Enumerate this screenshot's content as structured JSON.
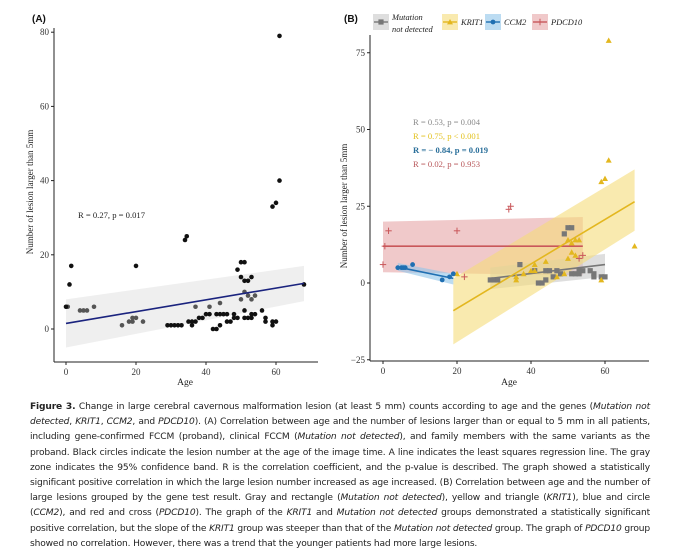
{
  "chart_data": [
    {
      "panel": "(A)",
      "type": "scatter",
      "title": "",
      "xlabel": "Age",
      "ylabel": "Number of lesion larger than 5mm",
      "xlim": [
        -3,
        71
      ],
      "ylim": [
        -9,
        82
      ],
      "xticks": [
        0,
        20,
        40,
        60
      ],
      "yticks": [
        0,
        20,
        40,
        60,
        80
      ],
      "grid": false,
      "annotation": "R = 0.27, p = 0.017",
      "colors": {
        "points_black": "#111111",
        "points_gray": "#555555",
        "line": "#1a237e",
        "band": "#e8e8e8"
      },
      "regression": {
        "x": [
          0,
          68
        ],
        "y": [
          1.5,
          12.3
        ],
        "band_lower": [
          -5,
          7.5
        ],
        "band_upper": [
          8,
          17
        ]
      },
      "points_black": [
        [
          0,
          6
        ],
        [
          1,
          12
        ],
        [
          1.5,
          17
        ],
        [
          20,
          17
        ],
        [
          29,
          1
        ],
        [
          30,
          1
        ],
        [
          31,
          1
        ],
        [
          32,
          1
        ],
        [
          33,
          1
        ],
        [
          34,
          24
        ],
        [
          34.5,
          25
        ],
        [
          35,
          2
        ],
        [
          36,
          1
        ],
        [
          36,
          2
        ],
        [
          37,
          2
        ],
        [
          38,
          3
        ],
        [
          39,
          3
        ],
        [
          40,
          4
        ],
        [
          41,
          4
        ],
        [
          42,
          0
        ],
        [
          43,
          0
        ],
        [
          44,
          1
        ],
        [
          43,
          4
        ],
        [
          44,
          4
        ],
        [
          45,
          4
        ],
        [
          46,
          4
        ],
        [
          46,
          2
        ],
        [
          47,
          2
        ],
        [
          48,
          4
        ],
        [
          48,
          3
        ],
        [
          49,
          16
        ],
        [
          49,
          3
        ],
        [
          50,
          14
        ],
        [
          50,
          18
        ],
        [
          51,
          18
        ],
        [
          51,
          13
        ],
        [
          51,
          5
        ],
        [
          51,
          3
        ],
        [
          52,
          13
        ],
        [
          52,
          3
        ],
        [
          53,
          14
        ],
        [
          53,
          3
        ],
        [
          53,
          4
        ],
        [
          54,
          4
        ],
        [
          56,
          5
        ],
        [
          57,
          3
        ],
        [
          57,
          2
        ],
        [
          59,
          1
        ],
        [
          59,
          2
        ],
        [
          59,
          33
        ],
        [
          60,
          34
        ],
        [
          60,
          2
        ],
        [
          61,
          40
        ],
        [
          61,
          79
        ],
        [
          68,
          12
        ]
      ],
      "points_gray": [
        [
          0.5,
          6
        ],
        [
          4,
          5
        ],
        [
          5,
          5
        ],
        [
          6,
          5
        ],
        [
          8,
          6
        ],
        [
          16,
          1
        ],
        [
          18,
          2
        ],
        [
          19,
          2
        ],
        [
          19,
          3
        ],
        [
          20,
          3
        ],
        [
          22,
          2
        ],
        [
          37,
          6
        ],
        [
          41,
          6
        ],
        [
          44,
          7
        ],
        [
          50,
          8
        ],
        [
          51,
          10
        ],
        [
          52,
          9
        ],
        [
          53,
          8
        ],
        [
          54,
          9
        ]
      ]
    },
    {
      "panel": "(B)",
      "type": "scatter",
      "title": "",
      "xlabel": "Age",
      "ylabel": "Number of lesion larger than 5mm",
      "xlim": [
        -4,
        71
      ],
      "ylim": [
        -25,
        82
      ],
      "xticks": [
        0,
        20,
        40,
        60
      ],
      "yticks": [
        -25,
        0,
        25,
        50,
        75
      ],
      "grid": false,
      "legend": {
        "placement": "top",
        "entries": [
          "Mutation not detected",
          "KRIT1",
          "CCM2",
          "PDCD10"
        ]
      },
      "annotations": [
        "R = 0.53, p = 0.004",
        "R = 0.75, p < 0.001",
        "R = − 0.84, p = 0.019",
        "R = 0.02, p = 0.953"
      ],
      "series": [
        {
          "name": "Mutation not detected",
          "marker": "square",
          "color": "#777777",
          "band_color": "#c8c8c8",
          "regression": {
            "x": [
              29,
              60
            ],
            "y": [
              1.5,
              6
            ],
            "band_lower": [
              -2,
              2
            ],
            "band_upper": [
              5,
              9.5
            ]
          },
          "points": [
            [
              29,
              1
            ],
            [
              30,
              1
            ],
            [
              31,
              1
            ],
            [
              37,
              6
            ],
            [
              42,
              0
            ],
            [
              43,
              0
            ],
            [
              44,
              1
            ],
            [
              46,
              2
            ],
            [
              48,
              3
            ],
            [
              49,
              16
            ],
            [
              50,
              18
            ],
            [
              51,
              18
            ],
            [
              51,
              3
            ],
            [
              52,
              3
            ],
            [
              53,
              4
            ],
            [
              53,
              3
            ],
            [
              54,
              4
            ],
            [
              56,
              4
            ],
            [
              57,
              3
            ],
            [
              57,
              2
            ],
            [
              59,
              2
            ],
            [
              60,
              2
            ],
            [
              41,
              4
            ],
            [
              44,
              4
            ],
            [
              45,
              4
            ],
            [
              47,
              4
            ]
          ]
        },
        {
          "name": "KRIT1",
          "marker": "triangle",
          "color": "#e3b71f",
          "band_color": "#f5dc7a",
          "regression": {
            "x": [
              19,
              68
            ],
            "y": [
              -9,
              26.5
            ],
            "band_lower": [
              -20,
              17
            ],
            "band_upper": [
              1.5,
              37
            ]
          },
          "points": [
            [
              20,
              3
            ],
            [
              36,
              1
            ],
            [
              36,
              2
            ],
            [
              38,
              3
            ],
            [
              40,
              4
            ],
            [
              41,
              6
            ],
            [
              41,
              4
            ],
            [
              44,
              7
            ],
            [
              47,
              2
            ],
            [
              50,
              8
            ],
            [
              50,
              14
            ],
            [
              51,
              10
            ],
            [
              51,
              13
            ],
            [
              52,
              14
            ],
            [
              52,
              9
            ],
            [
              53,
              14
            ],
            [
              49,
              3
            ],
            [
              59,
              1
            ],
            [
              59,
              33
            ],
            [
              60,
              34
            ],
            [
              61,
              40
            ],
            [
              61,
              79
            ],
            [
              68,
              12
            ]
          ]
        },
        {
          "name": "CCM2",
          "marker": "circle",
          "color": "#1f6fb2",
          "band_color": "#8fc4ea",
          "regression": {
            "x": [
              4,
              19
            ],
            "y": [
              5.2,
              1.5
            ],
            "band_lower": [
              4,
              -0.5
            ],
            "band_upper": [
              6.5,
              3
            ]
          },
          "points": [
            [
              4,
              5
            ],
            [
              5,
              5
            ],
            [
              6,
              5
            ],
            [
              5.5,
              5
            ],
            [
              8,
              6
            ],
            [
              16,
              1
            ],
            [
              18,
              2
            ],
            [
              19,
              3
            ]
          ]
        },
        {
          "name": "PDCD10",
          "marker": "cross",
          "color": "#c9575a",
          "band_color": "#e6a5a7",
          "regression": {
            "x": [
              0,
              54
            ],
            "y": [
              12,
              12
            ],
            "band_lower": [
              3.5,
              2.5
            ],
            "band_upper": [
              20,
              21.5
            ]
          },
          "points": [
            [
              0,
              6
            ],
            [
              0.5,
              12
            ],
            [
              1.5,
              17
            ],
            [
              20,
              17
            ],
            [
              22,
              2
            ],
            [
              34,
              24
            ],
            [
              34.5,
              25
            ],
            [
              53,
              8
            ],
            [
              54,
              9
            ]
          ]
        }
      ]
    }
  ],
  "figure": {
    "panel_a_label": "(A)",
    "panel_b_label": "(B)"
  },
  "caption": {
    "lead": "Figure 3.",
    "segments": [
      {
        "t": " Change in large cerebral cavernous malformation lesion (at least 5 mm) counts according to age and the genes ("
      },
      {
        "t": "Mutation not detected",
        "i": true
      },
      {
        "t": ", "
      },
      {
        "t": "KRIT1",
        "i": true
      },
      {
        "t": ", "
      },
      {
        "t": "CCM2",
        "i": true
      },
      {
        "t": ", and "
      },
      {
        "t": "PDCD10",
        "i": true
      },
      {
        "t": "). (A) Correlation between age and the number of lesions larger than or equal to 5 mm in all patients, including gene-confirmed FCCM (proband), clinical FCCM ("
      },
      {
        "t": "Mutation not detected",
        "i": true
      },
      {
        "t": "), and family members with the same variants as the proband. Black circles indicate the lesion number at the age of the image time. A line indicates the least squares regression line. The gray zone indicates the 95% confidence band. R is the correlation coefficient, and the p-value is described. The graph showed a statistically significant positive correlation in which the large lesion number increased as age increased. (B) Correlation between age and the number of large lesions grouped by the gene test result. Gray and rectangle ("
      },
      {
        "t": "Mutation not detected",
        "i": true
      },
      {
        "t": "), yellow and triangle ("
      },
      {
        "t": "KRIT1",
        "i": true
      },
      {
        "t": "), blue and circle ("
      },
      {
        "t": "CCM2",
        "i": true
      },
      {
        "t": "), and red and cross ("
      },
      {
        "t": "PDCD10",
        "i": true
      },
      {
        "t": "). The graph of the "
      },
      {
        "t": "KRIT1",
        "i": true
      },
      {
        "t": " and "
      },
      {
        "t": "Mutation not detected",
        "i": true
      },
      {
        "t": " groups demonstrated a statistically significant positive correlation, but the slope of the "
      },
      {
        "t": "KRIT1",
        "i": true
      },
      {
        "t": " group was steeper than that of the "
      },
      {
        "t": "Mutation not detected",
        "i": true
      },
      {
        "t": " group. The graph of "
      },
      {
        "t": "PDCD10",
        "i": true
      },
      {
        "t": " group showed no correlation. However, there was a trend that the younger patients had more large lesions."
      }
    ]
  }
}
